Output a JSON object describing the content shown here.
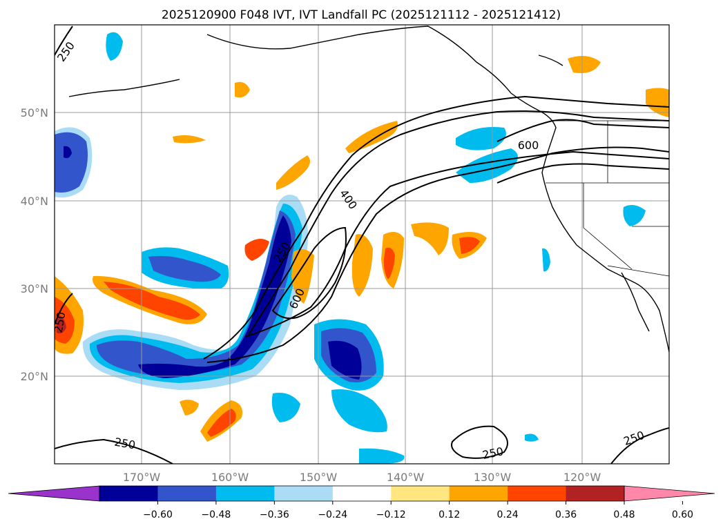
{
  "title": "2025120900 F048 IVT, IVT Landfall PC (2025121112 - 2025121412)",
  "map": {
    "lon_ticks": [
      "170°W",
      "160°W",
      "150°W",
      "140°W",
      "130°W",
      "120°W"
    ],
    "lat_ticks": [
      "50°N",
      "40°N",
      "30°N",
      "20°N"
    ]
  },
  "contour_labels": [
    "250",
    "250",
    "250",
    "400",
    "600",
    "600",
    "250",
    "250"
  ],
  "colorbar": {
    "ticks": [
      "−0.60",
      "−0.48",
      "−0.36",
      "−0.24",
      "−0.12",
      "0.12",
      "0.24",
      "0.36",
      "0.48",
      "0.60"
    ],
    "colors": [
      "#9933cc",
      "#000099",
      "#3355cc",
      "#00bbee",
      "#aaddf5",
      "#ffffff",
      "#ffe680",
      "#ffa500",
      "#ff4400",
      "#b22222",
      "#ff88aa"
    ]
  }
}
